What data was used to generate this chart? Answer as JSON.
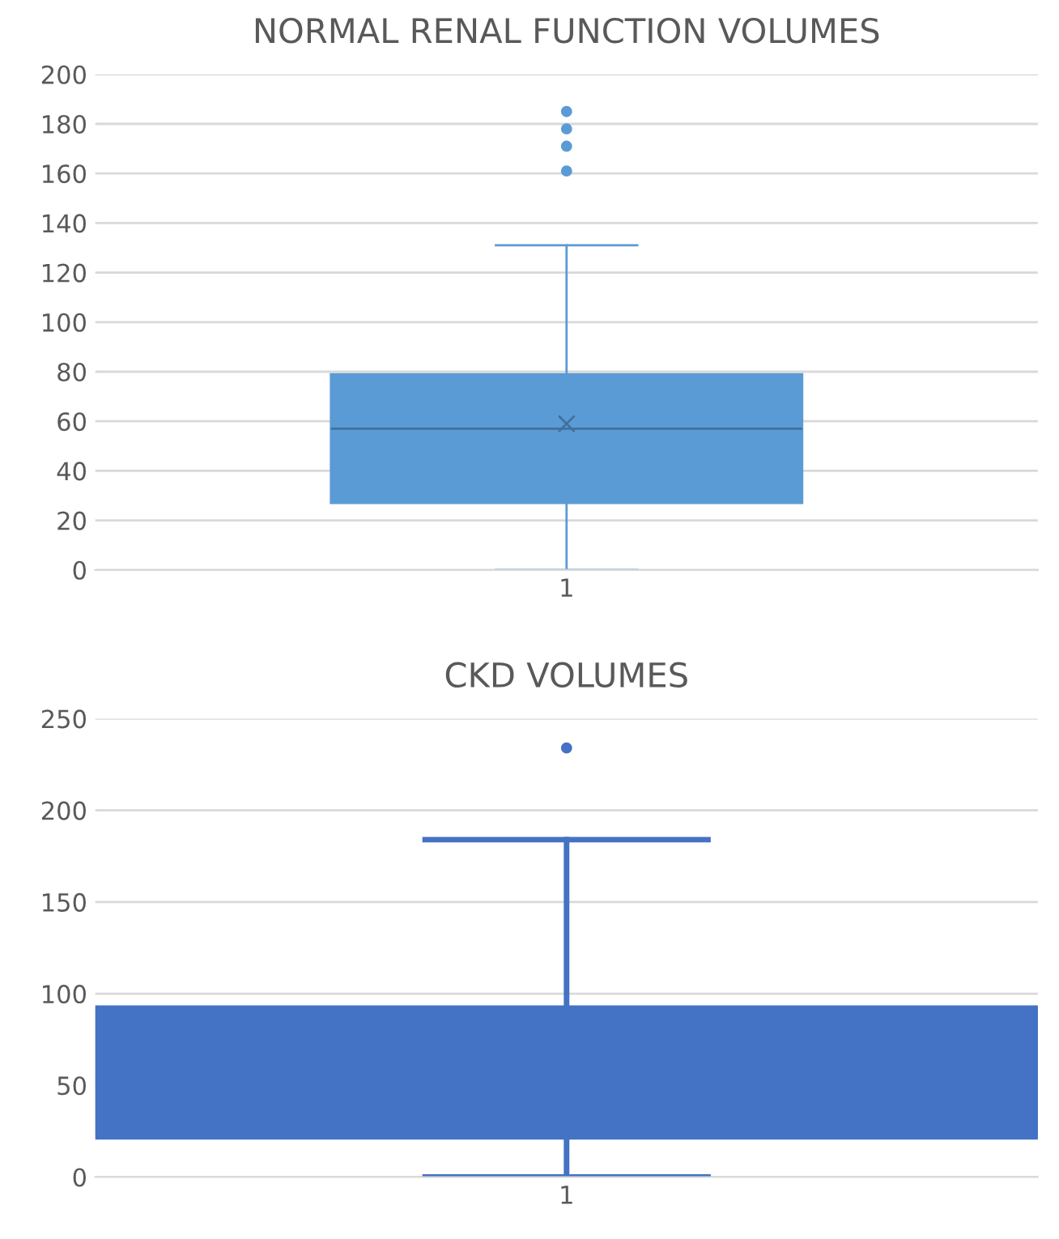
{
  "chart_data": [
    {
      "type": "box",
      "title": "NORMAL RENAL FUNCTION VOLUMES",
      "categories": [
        "1"
      ],
      "color": "#5b9bd5",
      "boxes": [
        {
          "low": 0,
          "q1": 27,
          "median": 57,
          "q3": 79,
          "high": 131,
          "mean": 59,
          "outliers": [
            161,
            171,
            178,
            185
          ]
        }
      ],
      "ylim": [
        0,
        200
      ],
      "yticks": [
        0,
        20,
        40,
        60,
        80,
        100,
        120,
        140,
        160,
        180,
        200
      ],
      "grid": "y"
    },
    {
      "type": "box",
      "title": "CKD VOLUMES",
      "categories": [
        "1"
      ],
      "color": "#4472c4",
      "boxes": [
        {
          "low": 0,
          "q1": 21,
          "median": 53,
          "q3": 93,
          "high": 184,
          "outliers": [
            234
          ]
        }
      ],
      "ylim": [
        0,
        250
      ],
      "yticks": [
        0,
        50,
        100,
        150,
        200,
        250
      ],
      "grid": "y"
    }
  ]
}
